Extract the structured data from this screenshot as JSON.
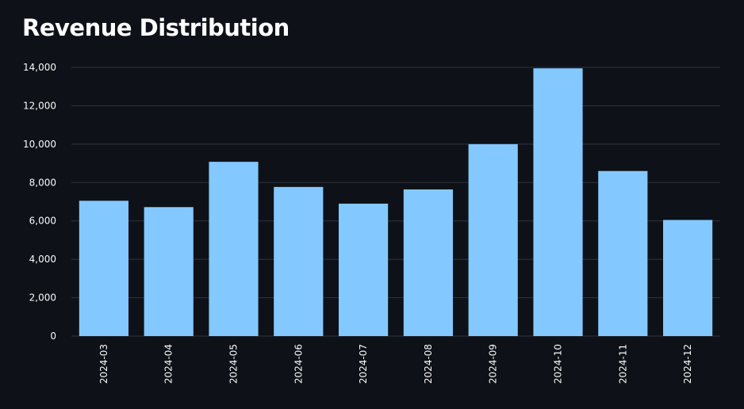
{
  "title": "Revenue Distribution",
  "colors": {
    "background": "#0e1117",
    "bar": "#83c9ff",
    "grid": "#31333f",
    "text": "#fafafa"
  },
  "chart_data": {
    "type": "bar",
    "title": "Revenue Distribution",
    "xlabel": "",
    "ylabel": "",
    "categories": [
      "2024-03",
      "2024-04",
      "2024-05",
      "2024-06",
      "2024-07",
      "2024-08",
      "2024-09",
      "2024-10",
      "2024-11",
      "2024-12"
    ],
    "values": [
      7050,
      6720,
      9080,
      7770,
      6900,
      7640,
      10000,
      13950,
      8600,
      6050
    ],
    "ylim": [
      0,
      14000
    ],
    "yticks": [
      0,
      2000,
      4000,
      6000,
      8000,
      10000,
      12000,
      14000
    ],
    "ytick_labels": [
      "0",
      "2,000",
      "4,000",
      "6,000",
      "8,000",
      "10,000",
      "12,000",
      "14,000"
    ],
    "grid": true,
    "legend": "none"
  }
}
